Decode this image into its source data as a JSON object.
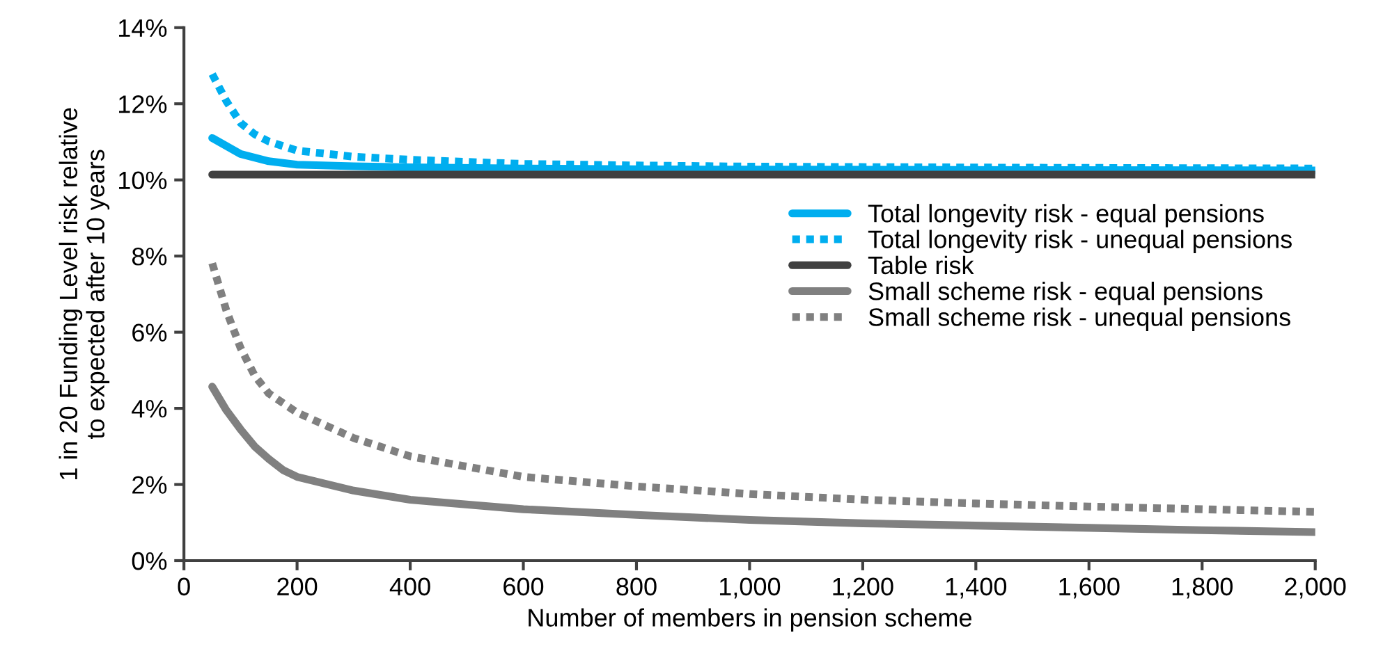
{
  "chart_data": {
    "type": "line",
    "xlabel": "Number of members in pension scheme",
    "ylabel": "1 in 20 Funding Level risk relative\nto expected after 10 years",
    "xlim": [
      0,
      2000
    ],
    "xticks": [
      0,
      {
        "value": 200,
        "label": "200"
      },
      {
        "value": 400,
        "label": "400"
      },
      {
        "value": 600,
        "label": "600"
      },
      {
        "value": 800,
        "label": "800"
      },
      {
        "value": 1000,
        "label": "1,000"
      },
      {
        "value": 1200,
        "label": "1,200"
      },
      {
        "value": 1400,
        "label": "1,400"
      },
      {
        "value": 1600,
        "label": "1,600"
      },
      {
        "value": 1800,
        "label": "1,800"
      },
      {
        "value": 2000,
        "label": "2,000"
      }
    ],
    "ylim": [
      0,
      14
    ],
    "yticks": [
      {
        "value": 0,
        "label": "0%"
      },
      {
        "value": 2,
        "label": "2%"
      },
      {
        "value": 4,
        "label": "4%"
      },
      {
        "value": 6,
        "label": "6%"
      },
      {
        "value": 8,
        "label": "8%"
      },
      {
        "value": 10,
        "label": "10%"
      },
      {
        "value": 12,
        "label": "12%"
      },
      {
        "value": 14,
        "label": "14%"
      }
    ],
    "grid": false,
    "legend": "right",
    "marker": "none",
    "series": [
      {
        "name": "Total longevity risk - equal pensions",
        "color": "#00aeef",
        "line_style": "solid",
        "x": [
          50,
          100,
          150,
          200,
          300,
          400,
          600,
          800,
          1000,
          1500,
          2000
        ],
        "values": [
          11.1,
          10.68,
          10.49,
          10.4,
          10.36,
          10.33,
          10.3,
          10.28,
          10.27,
          10.26,
          10.25
        ]
      },
      {
        "name": "Total longevity risk - unequal pensions",
        "color": "#00aeef",
        "line_style": "dotted",
        "x": [
          50,
          75,
          100,
          125,
          150,
          200,
          300,
          400,
          600,
          800,
          1000,
          1500,
          2000
        ],
        "values": [
          12.78,
          12.07,
          11.5,
          11.2,
          11.01,
          10.77,
          10.61,
          10.53,
          10.42,
          10.38,
          10.35,
          10.32,
          10.3
        ]
      },
      {
        "name": "Table risk",
        "color": "#404040",
        "line_style": "solid",
        "x": [
          50,
          2000
        ],
        "values": [
          10.14,
          10.14
        ]
      },
      {
        "name": "Small scheme risk - equal pensions",
        "color": "#808080",
        "line_style": "solid",
        "x": [
          50,
          75,
          100,
          125,
          150,
          175,
          200,
          300,
          400,
          600,
          800,
          1000,
          1200,
          1400,
          1600,
          1800,
          2000
        ],
        "values": [
          4.57,
          3.95,
          3.45,
          3.0,
          2.67,
          2.38,
          2.2,
          1.84,
          1.6,
          1.35,
          1.2,
          1.07,
          0.98,
          0.92,
          0.86,
          0.8,
          0.75
        ]
      },
      {
        "name": "Small scheme risk - unequal pensions",
        "color": "#808080",
        "line_style": "dotted",
        "x": [
          50,
          75,
          100,
          125,
          150,
          200,
          300,
          400,
          600,
          800,
          1000,
          1200,
          1400,
          1600,
          1800,
          2000
        ],
        "values": [
          7.81,
          6.57,
          5.59,
          4.86,
          4.39,
          3.89,
          3.22,
          2.74,
          2.2,
          1.95,
          1.75,
          1.6,
          1.5,
          1.42,
          1.35,
          1.28
        ]
      }
    ]
  }
}
